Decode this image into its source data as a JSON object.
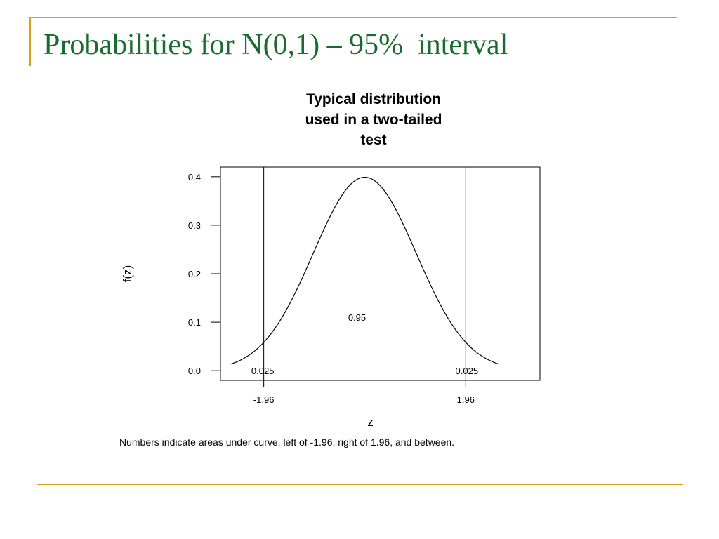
{
  "slide": {
    "title": "Probabilities for N(0,1) – 95%  interval",
    "accent_color": "#d4a017",
    "title_color": "#1a6b2f"
  },
  "chart_data": {
    "type": "line",
    "title_lines": [
      "Typical distribution",
      "used in a two-tailed",
      "test"
    ],
    "xlabel": "z",
    "ylabel": "f(z)",
    "xlim": [
      -2.8,
      3.4
    ],
    "ylim": [
      -0.02,
      0.42
    ],
    "x_ticks": [
      {
        "value": -1.96,
        "label": "-1.96"
      },
      {
        "value": 1.96,
        "label": "1.96"
      }
    ],
    "y_ticks": [
      {
        "value": 0.0,
        "label": "0.0"
      },
      {
        "value": 0.1,
        "label": "0.1"
      },
      {
        "value": 0.2,
        "label": "0.2"
      },
      {
        "value": 0.3,
        "label": "0.3"
      },
      {
        "value": 0.4,
        "label": "0.4"
      }
    ],
    "curve": {
      "distribution": "standard normal density",
      "x_range": [
        -2.6,
        2.6
      ]
    },
    "vertical_lines": [
      -1.96,
      1.96
    ],
    "area_labels": [
      {
        "text": "0.025",
        "x": -1.98,
        "y": 0.0
      },
      {
        "text": "0.95",
        "x": -0.15,
        "y": 0.11
      },
      {
        "text": "0.025",
        "x": 1.98,
        "y": 0.0
      }
    ],
    "grid": false,
    "legend": "none"
  },
  "caption": "Numbers indicate areas under curve, left of -1.96, right of 1.96, and between."
}
